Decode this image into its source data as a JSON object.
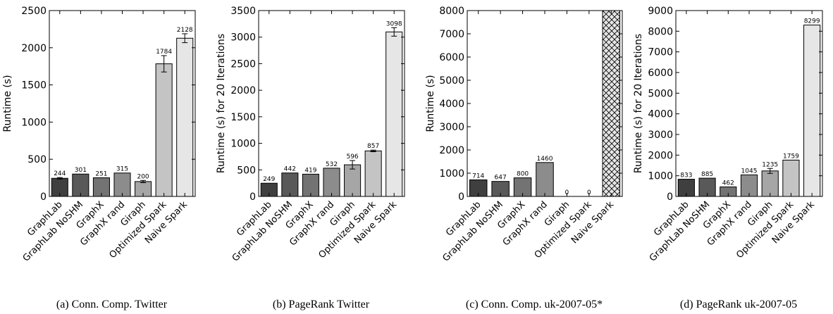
{
  "chart_data": [
    {
      "type": "bar",
      "caption": "(a) Conn. Comp. Twitter",
      "ylabel": "Runtime (s)",
      "ylim": [
        0,
        2500
      ],
      "yticks": [
        "0",
        "500",
        "1000",
        "1500",
        "2000",
        "2500"
      ],
      "categories": [
        "GraphLab",
        "GraphLab NoSHM",
        "GraphX",
        "GraphX rand",
        "Giraph",
        "Optimized Spark",
        "Naive Spark"
      ],
      "values": [
        244,
        301,
        251,
        315,
        200,
        1784,
        2128
      ],
      "labels": [
        "244",
        "301",
        "251",
        "315",
        "200",
        "1784",
        "2128"
      ],
      "errors": [
        10,
        0,
        0,
        0,
        15,
        110,
        60
      ],
      "colors": [
        "#3f3f3f",
        "#595959",
        "#737373",
        "#8c8c8c",
        "#a6a6a6",
        "#c4c4c4",
        "#e6e6e6"
      ],
      "grid": false,
      "legend": "none"
    },
    {
      "type": "bar",
      "caption": "(b) PageRank Twitter",
      "ylabel": "Runtime (s) for 20 Iterations",
      "ylim": [
        0,
        3500
      ],
      "yticks": [
        "0",
        "500",
        "1000",
        "1500",
        "2000",
        "2500",
        "3000",
        "3500"
      ],
      "categories": [
        "GraphLab",
        "GraphLab NoSHM",
        "GraphX",
        "GraphX rand",
        "Giraph",
        "Optimized Spark",
        "Naive Spark"
      ],
      "values": [
        249,
        442,
        419,
        532,
        596,
        857,
        3098
      ],
      "labels": [
        "249",
        "442",
        "419",
        "532",
        "596",
        "857",
        "3098"
      ],
      "errors": [
        0,
        0,
        0,
        0,
        80,
        15,
        80
      ],
      "colors": [
        "#3f3f3f",
        "#595959",
        "#737373",
        "#8c8c8c",
        "#a6a6a6",
        "#c4c4c4",
        "#e6e6e6"
      ],
      "grid": false,
      "legend": "none"
    },
    {
      "type": "bar",
      "caption": "(c) Conn. Comp. uk-2007-05*",
      "ylabel": "Runtime (s)",
      "ylim": [
        0,
        8000
      ],
      "yticks": [
        "0",
        "1000",
        "2000",
        "3000",
        "4000",
        "5000",
        "6000",
        "7000",
        "8000"
      ],
      "categories": [
        "GraphLab",
        "GraphLab NoSHM",
        "GraphX",
        "GraphX rand",
        "Giraph",
        "Optimized Spark",
        "Naive Spark"
      ],
      "values": [
        714,
        647,
        800,
        1460,
        0,
        0,
        8000
      ],
      "labels": [
        "714",
        "647",
        "800",
        "1460",
        "0",
        "0",
        ""
      ],
      "hatched": [
        false,
        false,
        false,
        false,
        false,
        false,
        true
      ],
      "errors": [
        0,
        0,
        0,
        0,
        0,
        0,
        0
      ],
      "colors": [
        "#3f3f3f",
        "#595959",
        "#737373",
        "#8c8c8c",
        "#a6a6a6",
        "#c4c4c4",
        "#e6e6e6"
      ],
      "grid": false,
      "legend": "none"
    },
    {
      "type": "bar",
      "caption": "(d) PageRank uk-2007-05",
      "ylabel": "Runtime (s) for 20 Iterations",
      "ylim": [
        0,
        9000
      ],
      "yticks": [
        "0",
        "1000",
        "2000",
        "3000",
        "4000",
        "5000",
        "6000",
        "7000",
        "8000",
        "9000"
      ],
      "categories": [
        "GraphLab",
        "GraphLab NoSHM",
        "GraphX",
        "GraphX rand",
        "Giraph",
        "Optimized Spark",
        "Naive Spark"
      ],
      "values": [
        833,
        885,
        462,
        1045,
        1235,
        1759,
        8299
      ],
      "labels": [
        "833",
        "885",
        "462",
        "1045",
        "1235",
        "1759",
        "8299"
      ],
      "errors": [
        0,
        0,
        0,
        0,
        120,
        0,
        0
      ],
      "colors": [
        "#3f3f3f",
        "#595959",
        "#737373",
        "#8c8c8c",
        "#a6a6a6",
        "#c4c4c4",
        "#e6e6e6"
      ],
      "grid": false,
      "legend": "none"
    }
  ]
}
